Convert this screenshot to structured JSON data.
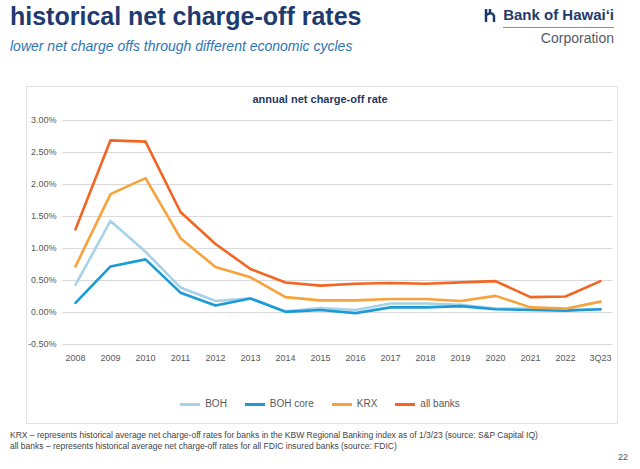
{
  "slide": {
    "title": "historical net charge-off rates",
    "subtitle": "lower net charge offs through different economic cycles",
    "logo": {
      "name": "Bank of Hawaiʻi",
      "tagline": "Corporation"
    },
    "notes": [
      "KRX – represents historical average net charge-off rates for banks in the KBW Regional Banking index as of 1/3/23 (source: S&P Capital IQ)",
      "all banks – represents historical average net charge-off rates for all FDIC insured banks (source: FDIC)"
    ],
    "page": 22
  },
  "chart_data": {
    "type": "line",
    "title": "annual net charge-off rate",
    "categories": [
      "2008",
      "2009",
      "2010",
      "2011",
      "2012",
      "2013",
      "2014",
      "2015",
      "2016",
      "2017",
      "2018",
      "2019",
      "2020",
      "2021",
      "2022",
      "3Q23"
    ],
    "series": [
      {
        "name": "BOH",
        "color": "#a6d3e8",
        "values": [
          0.43,
          1.43,
          0.95,
          0.39,
          0.18,
          0.22,
          0.02,
          0.07,
          0.04,
          0.14,
          0.14,
          0.12,
          0.06,
          0.06,
          0.04,
          0.05
        ]
      },
      {
        "name": "BOH core",
        "color": "#1b9ad6",
        "values": [
          0.15,
          0.72,
          0.83,
          0.31,
          0.11,
          0.22,
          0.01,
          0.04,
          -0.01,
          0.08,
          0.08,
          0.1,
          0.05,
          0.04,
          0.03,
          0.05
        ]
      },
      {
        "name": "KRX",
        "color": "#f7a23b",
        "values": [
          0.72,
          1.85,
          2.1,
          1.16,
          0.71,
          0.55,
          0.24,
          0.19,
          0.19,
          0.21,
          0.21,
          0.18,
          0.26,
          0.08,
          0.06,
          0.17
        ]
      },
      {
        "name": "all banks",
        "color": "#f26522",
        "values": [
          1.3,
          2.69,
          2.67,
          1.57,
          1.07,
          0.68,
          0.47,
          0.42,
          0.45,
          0.46,
          0.45,
          0.47,
          0.49,
          0.24,
          0.25,
          0.49
        ]
      }
    ],
    "ylim": [
      -0.5,
      3.0
    ],
    "yticks": [
      {
        "value": -0.5,
        "label": "-0.50%"
      },
      {
        "value": 0,
        "label": "0.00%"
      },
      {
        "value": 0.5,
        "label": "0.50%"
      },
      {
        "value": 1.0,
        "label": "1.00%"
      },
      {
        "value": 1.5,
        "label": "1.50%"
      },
      {
        "value": 2.0,
        "label": "2.00%"
      },
      {
        "value": 2.5,
        "label": "2.50%"
      },
      {
        "value": 3.0,
        "label": "3.00%"
      }
    ],
    "grid": true,
    "legend": "bottom"
  }
}
